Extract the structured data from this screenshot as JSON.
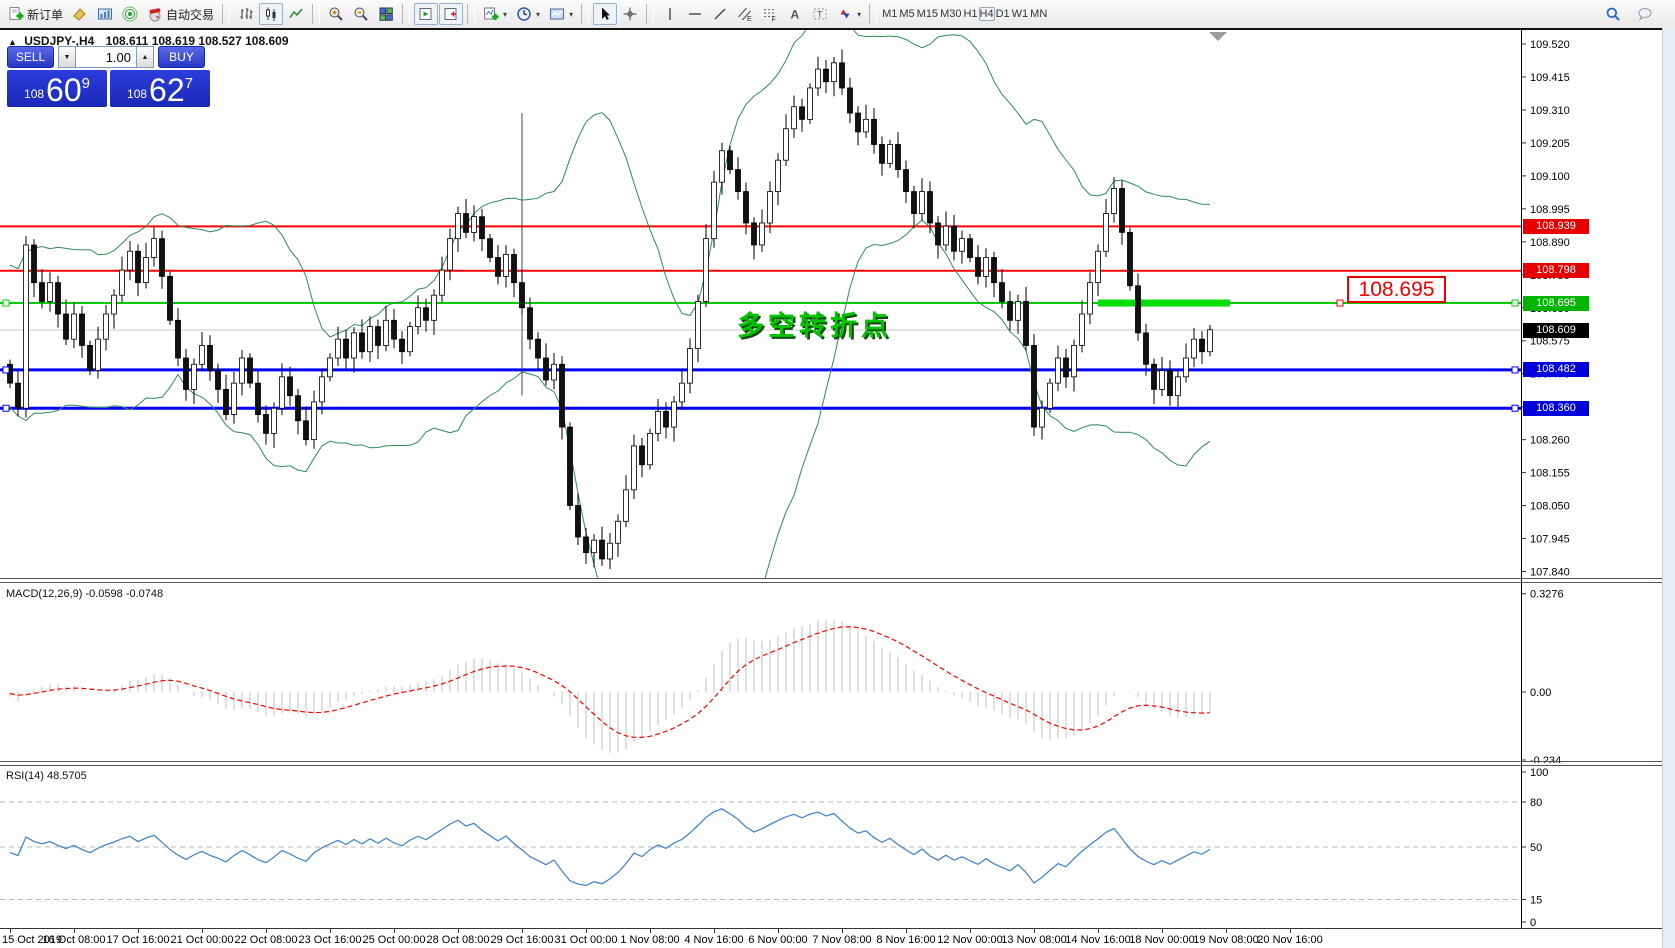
{
  "toolbar": {
    "new_order_label": "新订单",
    "autotrade_label": "自动交易",
    "timeframes": [
      "M1",
      "M5",
      "M15",
      "M30",
      "H1",
      "H4",
      "D1",
      "W1",
      "MN"
    ],
    "active_timeframe": "H4"
  },
  "chart": {
    "symbol_tf": "USDJPY-,H4",
    "ohlc": "108.611 108.619 108.527 108.609"
  },
  "trade_panel": {
    "sell_label": "SELL",
    "buy_label": "BUY",
    "volume": "1.00",
    "sell_price_whole": "108",
    "sell_price_big": "60",
    "sell_price_sup": "9",
    "buy_price_whole": "108",
    "buy_price_big": "62",
    "buy_price_sup": "7"
  },
  "chart_data": {
    "type": "candlestick",
    "symbol": "USDJPY",
    "timeframe": "H4",
    "price_axis": {
      "ticks": [
        "109.520",
        "109.415",
        "109.310",
        "109.205",
        "109.100",
        "108.995",
        "108.890",
        "108.785",
        "108.680",
        "108.575",
        "108.470",
        "108.365",
        "108.260",
        "108.155",
        "108.050",
        "107.945",
        "107.840"
      ]
    },
    "time_axis": {
      "bars_per_label": 8,
      "labels": [
        "15 Oct 2019",
        "16 Oct 08:00",
        "17 Oct 16:00",
        "21 Oct 00:00",
        "22 Oct 08:00",
        "23 Oct 16:00",
        "25 Oct 00:00",
        "28 Oct 08:00",
        "29 Oct 16:00",
        "31 Oct 00:00",
        "1 Nov 08:00",
        "4 Nov 16:00",
        "6 Nov 00:00",
        "7 Nov 08:00",
        "8 Nov 16:00",
        "12 Nov 00:00",
        "13 Nov 08:00",
        "14 Nov 16:00",
        "18 Nov 00:00",
        "19 Nov 08:00",
        "20 Nov 16:00"
      ]
    },
    "candles": {
      "first_open": 108.5,
      "closes": [
        108.44,
        108.36,
        108.88,
        108.76,
        108.7,
        108.76,
        108.66,
        108.58,
        108.66,
        108.56,
        108.48,
        108.58,
        108.66,
        108.72,
        108.8,
        108.86,
        108.76,
        108.84,
        108.9,
        108.78,
        108.64,
        108.52,
        108.42,
        108.5,
        108.56,
        108.48,
        108.42,
        108.34,
        108.44,
        108.52,
        108.44,
        108.34,
        108.28,
        108.36,
        108.46,
        108.4,
        108.32,
        108.26,
        108.38,
        108.46,
        108.52,
        108.58,
        108.52,
        108.6,
        108.54,
        108.62,
        108.56,
        108.64,
        108.58,
        108.54,
        108.62,
        108.68,
        108.64,
        108.72,
        108.8,
        108.9,
        108.98,
        108.92,
        108.97,
        108.9,
        108.84,
        108.78,
        108.85,
        108.76,
        108.68,
        108.58,
        108.52,
        108.45,
        108.5,
        108.3,
        108.05,
        107.95,
        107.9,
        107.94,
        107.88,
        107.93,
        108.0,
        108.1,
        108.24,
        108.18,
        108.28,
        108.35,
        108.3,
        108.38,
        108.44,
        108.55,
        108.7,
        108.9,
        109.08,
        109.18,
        109.12,
        109.05,
        108.95,
        108.88,
        108.95,
        109.05,
        109.15,
        109.25,
        109.32,
        109.28,
        109.38,
        109.44,
        109.4,
        109.46,
        109.38,
        109.3,
        109.24,
        109.28,
        109.2,
        109.14,
        109.2,
        109.12,
        109.05,
        108.98,
        109.05,
        108.95,
        108.88,
        108.94,
        108.86,
        108.9,
        108.84,
        108.78,
        108.84,
        108.76,
        108.7,
        108.64,
        108.7,
        108.56,
        108.3,
        108.36,
        108.44,
        108.52,
        108.46,
        108.56,
        108.66,
        108.76,
        108.86,
        108.98,
        109.06,
        108.92,
        108.75,
        108.6,
        108.5,
        108.42,
        108.48,
        108.4,
        108.46,
        108.52,
        108.58,
        108.54,
        108.61
      ],
      "low_overrides": {
        "2": 108.33
      },
      "up_color": "#ffffff",
      "down_color": "#111111"
    },
    "overlays": {
      "bollinger_period": 20,
      "bollinger_dev": 2,
      "color": "#2e8b57",
      "seed_history": [
        108.6,
        108.75,
        108.5,
        108.4,
        108.65,
        108.8,
        108.55,
        108.45,
        108.7,
        108.6,
        108.5,
        108.75,
        108.65,
        108.55,
        108.6,
        108.7,
        108.5,
        108.45,
        108.6,
        108.65
      ]
    },
    "hlines": [
      {
        "price": 108.939,
        "color": "#ff0000",
        "width": 2,
        "handles": false
      },
      {
        "price": 108.798,
        "color": "#ff0000",
        "width": 2,
        "handles": false
      },
      {
        "price": 108.695,
        "color": "#00cc00",
        "width": 2,
        "handles": true
      },
      {
        "price": 108.482,
        "color": "#0000ff",
        "width": 3,
        "handles": true
      },
      {
        "price": 108.36,
        "color": "#0000ff",
        "width": 3,
        "handles": true
      }
    ],
    "current_price": {
      "value": 108.609,
      "line_color": "#c8c8c8"
    },
    "axis_badges": [
      {
        "text": "108.939",
        "price": 108.939,
        "bg": "#e60000"
      },
      {
        "text": "108.798",
        "price": 108.798,
        "bg": "#e60000"
      },
      {
        "text": "108.695",
        "price": 108.695,
        "bg": "#00b400"
      },
      {
        "text": "108.609",
        "price": 108.609,
        "bg": "#000000"
      },
      {
        "text": "108.482",
        "price": 108.482,
        "bg": "#0000dc"
      },
      {
        "text": "108.360",
        "price": 108.36,
        "bg": "#0000dc"
      }
    ],
    "highlight_segment": {
      "price": 108.695,
      "from_bar": 136,
      "to_bar": 152.5,
      "color": "#00dd00",
      "thickness": 7
    },
    "vertical_line": {
      "bar": 64,
      "from_price": 109.3,
      "to_price": 108.4,
      "color": "#444444"
    },
    "annotations": {
      "price_label": {
        "text": "108.695",
        "color": "#ee0000"
      },
      "note": {
        "text": "多空转折点",
        "color": "#00c400"
      }
    },
    "macd": {
      "label": "MACD(12,26,9) -0.0598 -0.0748",
      "fast": 12,
      "slow": 26,
      "signal": 9,
      "display_values": [
        -0.0598,
        -0.0748
      ],
      "axis_ticks": [
        {
          "text": "0.3276",
          "value": 0.3276
        },
        {
          "text": "0.00",
          "value": 0
        },
        {
          "text": "-0.234",
          "value": -0.234
        }
      ],
      "hist_color": "#c0c0c0",
      "signal_color": "#ff0000"
    },
    "rsi": {
      "label": "RSI(14) 48.5705",
      "period": 14,
      "display_value": 48.5705,
      "axis_ticks": [
        {
          "text": "100",
          "value": 100
        },
        {
          "text": "80",
          "value": 80
        },
        {
          "text": "50",
          "value": 50
        },
        {
          "text": "15",
          "value": 15
        },
        {
          "text": "0",
          "value": 0
        }
      ],
      "levels": [
        80,
        50,
        15
      ],
      "color": "#4a86c8"
    }
  }
}
